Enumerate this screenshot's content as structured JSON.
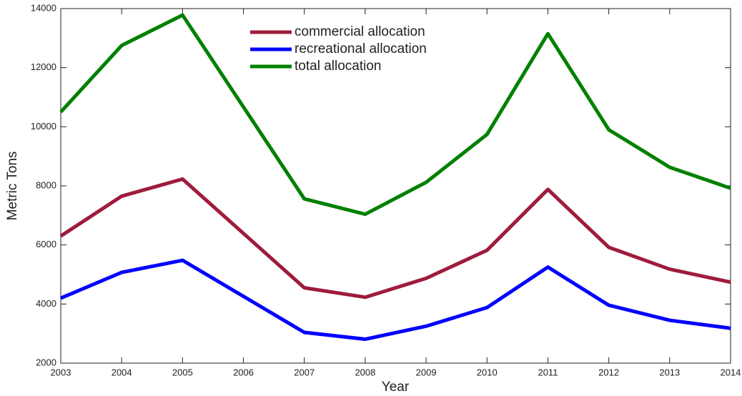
{
  "chart_data": {
    "type": "line",
    "x_label": "Year",
    "y_label": "Metric Tons",
    "x": [
      2003,
      2004,
      2005,
      2007,
      2008,
      2009,
      2010,
      2011,
      2012,
      2013,
      2014
    ],
    "series": [
      {
        "name": "commercial allocation",
        "color": "#9e1b3c",
        "values": [
          6300,
          7650,
          8230,
          4550,
          4230,
          4870,
          5820,
          7880,
          5920,
          5180,
          4740
        ]
      },
      {
        "name": "recreational allocation",
        "color": "#0000ff",
        "values": [
          4200,
          5070,
          5480,
          3040,
          2810,
          3250,
          3880,
          5250,
          3960,
          3450,
          3180
        ]
      },
      {
        "name": "total allocation",
        "color": "#008000",
        "values": [
          10500,
          12750,
          13780,
          7560,
          7040,
          8120,
          9740,
          13150,
          9900,
          8630,
          7920
        ]
      }
    ],
    "xlim": [
      2003,
      2014
    ],
    "xticks": [
      2003,
      2004,
      2005,
      2006,
      2007,
      2008,
      2009,
      2010,
      2011,
      2012,
      2013,
      2014
    ],
    "ylim": [
      2000,
      14000
    ],
    "yticks": [
      2000,
      4000,
      6000,
      8000,
      10000,
      12000,
      14000
    ],
    "grid": false,
    "legend": "upper center"
  }
}
